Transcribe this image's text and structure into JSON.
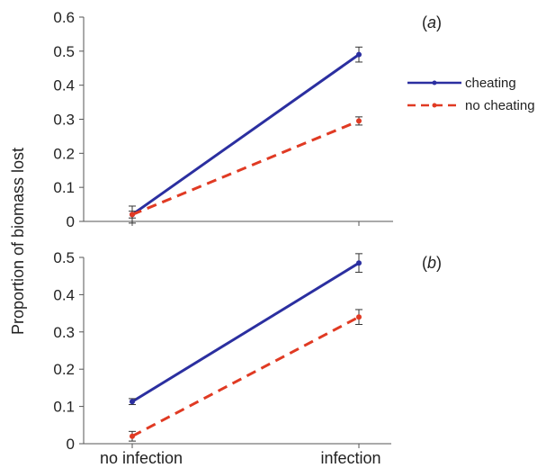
{
  "chart_data": {
    "type": "line",
    "ylabel": "Proportion of biomass lost",
    "categories": [
      "no infection",
      "infection"
    ],
    "legend": {
      "placement": "right",
      "entries": [
        {
          "name": "cheating",
          "color": "#2b2fa0",
          "dash": "solid"
        },
        {
          "name": "no cheating",
          "color": "#e03a23",
          "dash": "dashed"
        }
      ]
    },
    "panels": [
      {
        "label_prefix": "(",
        "label_letter": "a",
        "label_suffix": ")",
        "ylim": [
          0,
          0.6
        ],
        "yticks": [
          "0",
          "0.1",
          "0.2",
          "0.3",
          "0.4",
          "0.5",
          "0.6"
        ],
        "series": [
          {
            "name": "cheating",
            "values": [
              0.02,
              0.49
            ],
            "errors": [
              0.01,
              0.022
            ]
          },
          {
            "name": "no cheating",
            "values": [
              0.02,
              0.295
            ],
            "errors": [
              0.025,
              0.012
            ]
          }
        ]
      },
      {
        "label_prefix": "(",
        "label_letter": "b",
        "label_suffix": ")",
        "ylim": [
          0,
          0.5
        ],
        "yticks": [
          "0",
          "0.1",
          "0.2",
          "0.3",
          "0.4",
          "0.5"
        ],
        "series": [
          {
            "name": "cheating",
            "values": [
              0.113,
              0.485
            ],
            "errors": [
              0.008,
              0.025
            ]
          },
          {
            "name": "no cheating",
            "values": [
              0.02,
              0.34
            ],
            "errors": [
              0.013,
              0.02
            ]
          }
        ]
      }
    ]
  }
}
